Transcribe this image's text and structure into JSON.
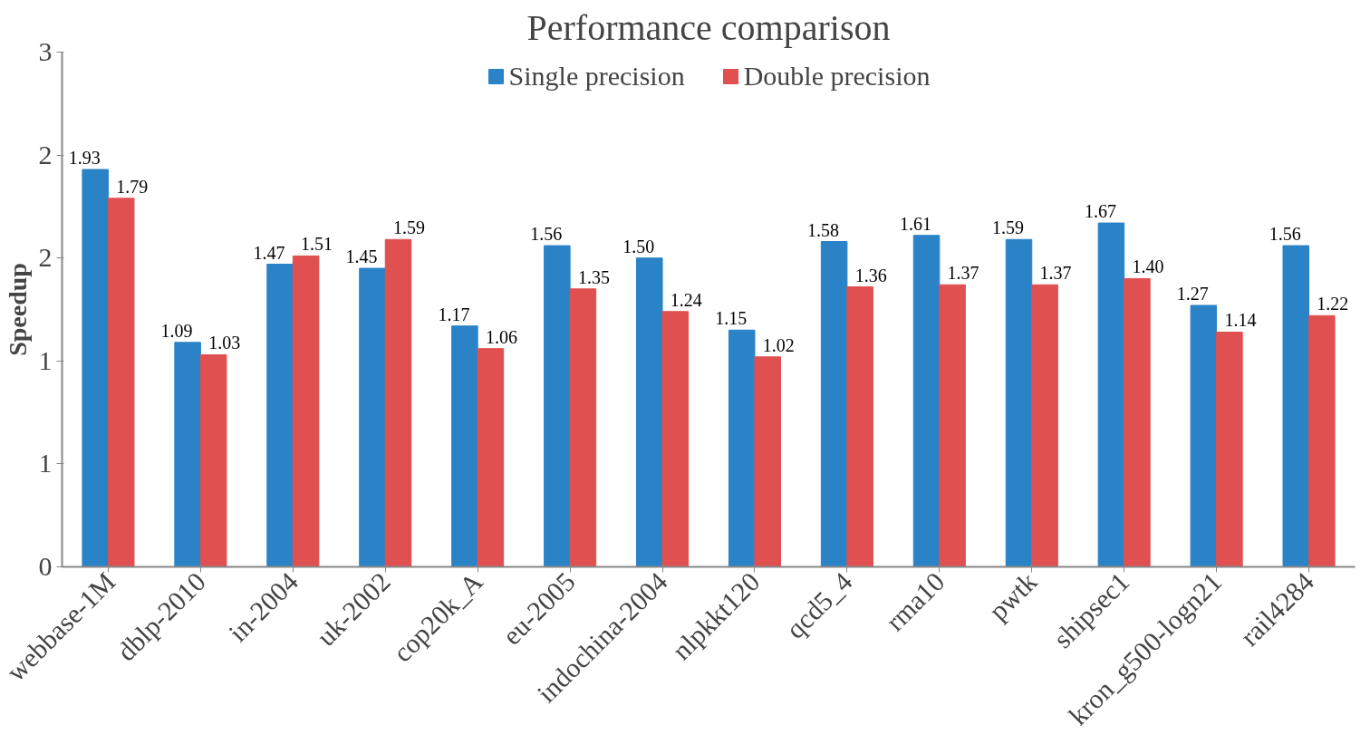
{
  "chart_data": {
    "type": "bar",
    "title": "Performance comparison",
    "ylabel": "Speedup",
    "categories": [
      "webbase-1M",
      "dblp-2010",
      "in-2004",
      "uk-2002",
      "cop20k_A",
      "eu-2005",
      "indochina-2004",
      "nlpkkt120",
      "qcd5_4",
      "rma10",
      "pwtk",
      "shipsec1",
      "kron_g500-logn21",
      "rail4284"
    ],
    "series": [
      {
        "name": "Single precision",
        "color": "#2a83c6",
        "values": [
          1.93,
          1.09,
          1.47,
          1.45,
          1.17,
          1.56,
          1.5,
          1.15,
          1.58,
          1.61,
          1.59,
          1.67,
          1.27,
          1.56
        ],
        "value_labels": [
          "1.93",
          "1.09",
          "1.47",
          "1.45",
          "1.17",
          "1.56",
          "1.50",
          "1.15",
          "1.58",
          "1.61",
          "1.59",
          "1.67",
          "1.27",
          "1.56"
        ]
      },
      {
        "name": "Double precision",
        "color": "#e05050",
        "values": [
          1.79,
          1.03,
          1.51,
          1.59,
          1.06,
          1.35,
          1.24,
          1.02,
          1.36,
          1.37,
          1.37,
          1.4,
          1.14,
          1.22
        ],
        "value_labels": [
          "1.79",
          "1.03",
          "1.51",
          "1.59",
          "1.06",
          "1.35",
          "1.24",
          "1.02",
          "1.36",
          "1.37",
          "1.37",
          "1.40",
          "1.14",
          "1.22"
        ]
      }
    ],
    "ylim": [
      0,
      2.5
    ],
    "yticks": [
      {
        "value": 0,
        "label": "0"
      },
      {
        "value": 0.5,
        "label": "1"
      },
      {
        "value": 1.0,
        "label": "1"
      },
      {
        "value": 1.5,
        "label": "2"
      },
      {
        "value": 2.0,
        "label": "2"
      },
      {
        "value": 2.5,
        "label": "3"
      }
    ],
    "legend": "top",
    "grid": false
  }
}
